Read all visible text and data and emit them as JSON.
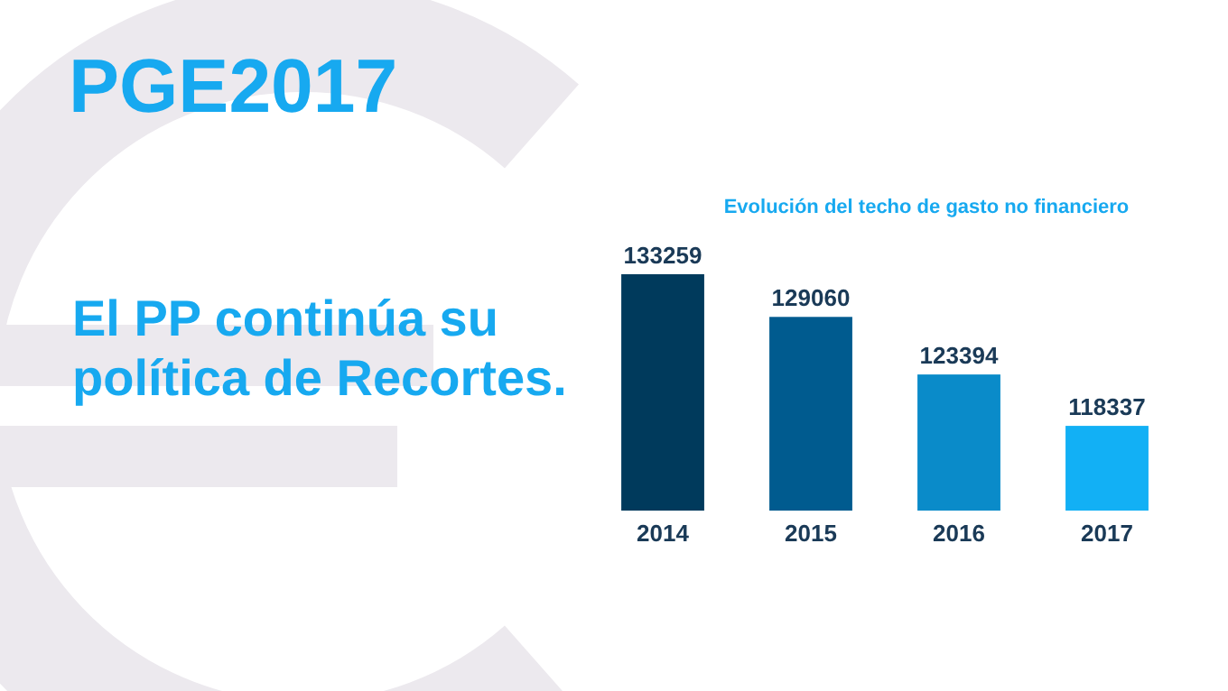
{
  "chart_data": {
    "type": "bar",
    "title": "PGE2017",
    "subtitle": "Evolución del techo de gasto no financiero",
    "annotations": [
      "El PP continúa su política de Recortes."
    ],
    "categories": [
      "2014",
      "2015",
      "2016",
      "2017"
    ],
    "values": [
      133259,
      129060,
      123394,
      118337
    ],
    "colors": [
      "#003a5c",
      "#005b8f",
      "#0a8bc9",
      "#12b0f5"
    ],
    "ylim": [
      110000,
      133259
    ],
    "tick_labels": "x",
    "data_labels": true
  }
}
